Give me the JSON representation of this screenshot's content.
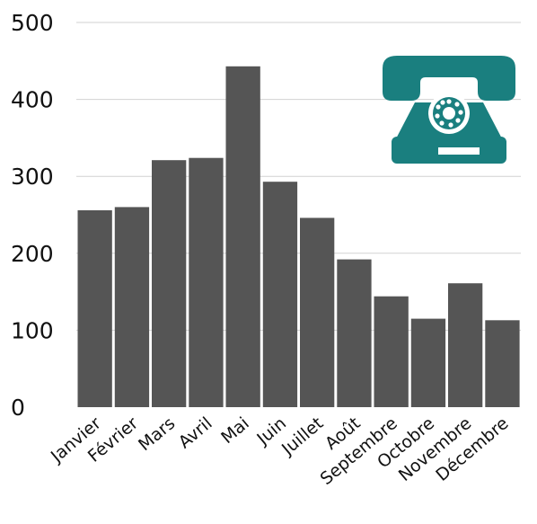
{
  "chart_data": {
    "type": "bar",
    "title": "",
    "xlabel": "",
    "ylabel": "",
    "categories": [
      "Janvier",
      "Février",
      "Mars",
      "Avril",
      "Mai",
      "Juin",
      "Juillet",
      "Août",
      "Septembre",
      "Octobre",
      "Novembre",
      "Décembre"
    ],
    "values": [
      256,
      260,
      321,
      324,
      443,
      293,
      246,
      192,
      144,
      115,
      161,
      113
    ],
    "ylim": [
      0,
      500
    ],
    "yticks": [
      0,
      100,
      200,
      300,
      400,
      500
    ],
    "grid": true,
    "legend": "none",
    "bar_color": "#555555",
    "icon": "telephone-icon",
    "icon_color": "#1a7f7f"
  }
}
